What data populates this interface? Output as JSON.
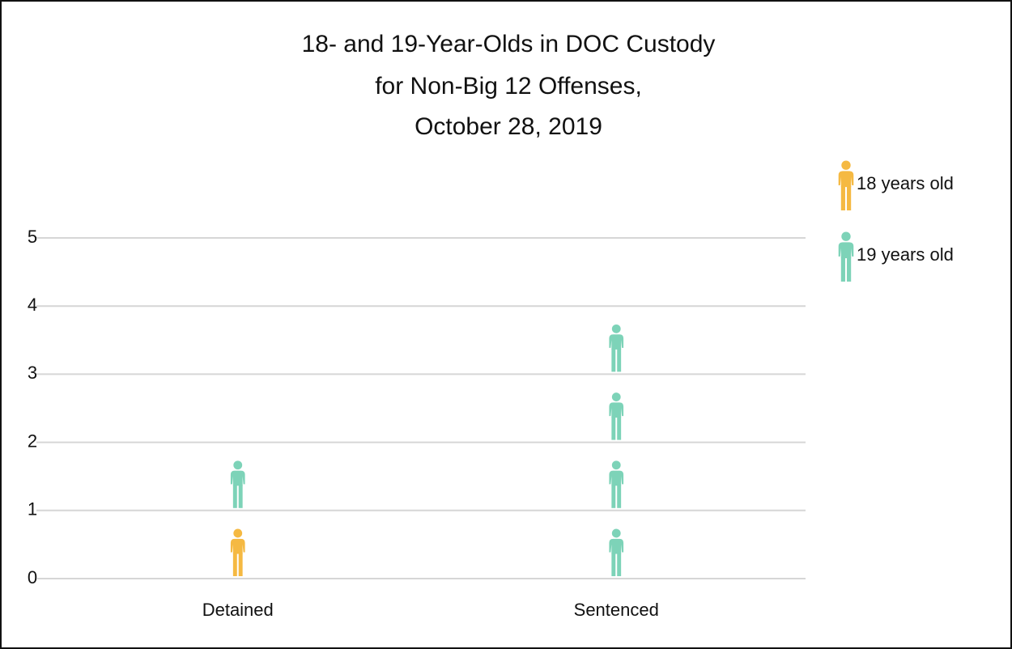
{
  "chart_data": {
    "type": "pictograph",
    "title": [
      "18- and 19-Year-Olds in DOC Custody",
      "for Non-Big 12 Offenses,",
      "October 28, 2019"
    ],
    "categories": [
      "Detained",
      "Sentenced"
    ],
    "series": [
      {
        "name": "18 years old",
        "color": "#f5b942",
        "values": [
          1,
          0
        ]
      },
      {
        "name": "19 years old",
        "color": "#7dd3b8",
        "values": [
          1,
          4
        ]
      }
    ],
    "ylim": [
      0,
      5
    ],
    "yticks": [
      0,
      1,
      2,
      3,
      4,
      5
    ],
    "grid": true,
    "legend": "right"
  }
}
